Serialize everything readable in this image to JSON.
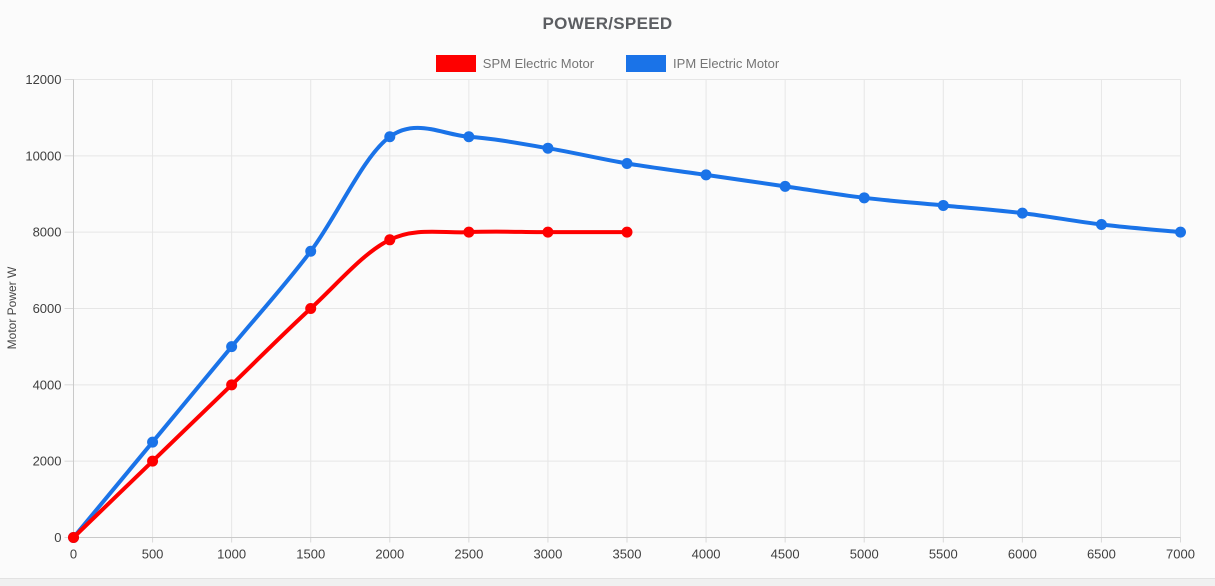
{
  "chart_data": {
    "type": "line",
    "title": "POWER/SPEED",
    "xlabel": "",
    "ylabel": "Motor Power W",
    "xlim": [
      0,
      7000
    ],
    "ylim": [
      0,
      12000
    ],
    "x_ticks": [
      0,
      500,
      1000,
      1500,
      2000,
      2500,
      3000,
      3500,
      4000,
      4500,
      5000,
      5500,
      6000,
      6500,
      7000
    ],
    "y_ticks": [
      0,
      2000,
      4000,
      6000,
      8000,
      10000,
      12000
    ],
    "grid": true,
    "legend_position": "top-center",
    "line_style": "smooth",
    "series": [
      {
        "name": "SPM Electric Motor",
        "color": "#fe0000",
        "x": [
          0,
          500,
          1000,
          1500,
          2000,
          2500,
          3000,
          3500
        ],
        "y": [
          0,
          2000,
          4000,
          6000,
          7800,
          8000,
          8000,
          8000
        ]
      },
      {
        "name": "IPM Electric Motor",
        "color": "#1a73e8",
        "x": [
          0,
          500,
          1000,
          1500,
          2000,
          2500,
          3000,
          3500,
          4000,
          4500,
          5000,
          5500,
          6000,
          6500,
          7000
        ],
        "y": [
          0,
          2500,
          5000,
          7500,
          10500,
          10500,
          10200,
          9800,
          9500,
          9200,
          8900,
          8700,
          8500,
          8200,
          8000
        ]
      }
    ]
  }
}
